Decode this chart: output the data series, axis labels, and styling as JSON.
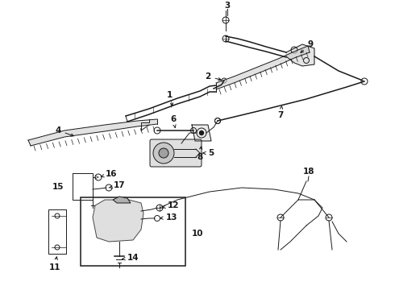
{
  "bg_color": "#ffffff",
  "line_color": "#1a1a1a",
  "figsize": [
    4.9,
    3.6
  ],
  "dpi": 100,
  "label_fontsize": 7.5
}
